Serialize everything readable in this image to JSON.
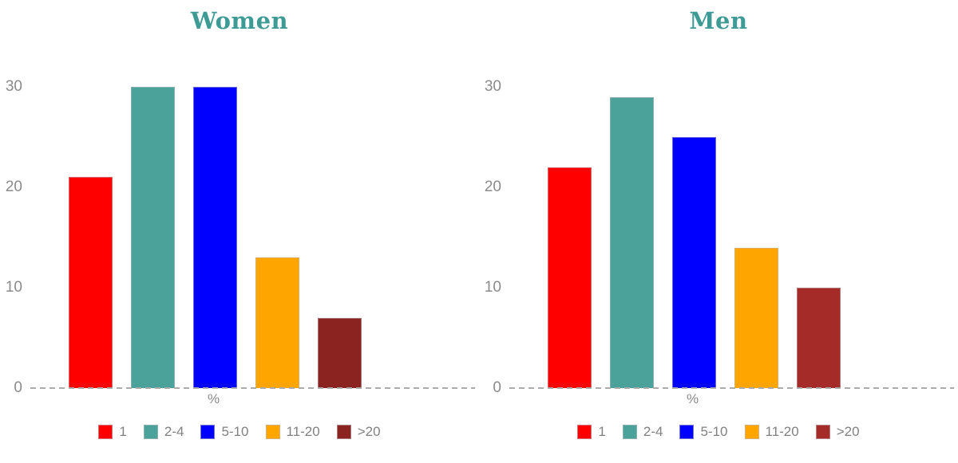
{
  "page": {
    "background": "#ffffff",
    "axis_text_color": "#8a8a8a",
    "legend_text_color": "#808080"
  },
  "chart_data": [
    {
      "type": "bar",
      "title": "Women",
      "title_color": "#3d9a94",
      "xlabel": "%",
      "categories": [
        "1",
        "2-4",
        "5-10",
        "11-20",
        ">20"
      ],
      "values": [
        21,
        30,
        30,
        13,
        7
      ],
      "colors": [
        "#fe0000",
        "#4aa29b",
        "#0000fe",
        "#ffa500",
        "#8b2320"
      ],
      "ylim": [
        0,
        30
      ],
      "yticks": [
        0,
        10,
        20,
        30
      ],
      "grid": false,
      "baseline_style": "dashed",
      "legend_position": "bottom"
    },
    {
      "type": "bar",
      "title": "Men",
      "title_color": "#3d9a94",
      "xlabel": "%",
      "categories": [
        "1",
        "2-4",
        "5-10",
        "11-20",
        ">20"
      ],
      "values": [
        22,
        29,
        25,
        14,
        10
      ],
      "colors": [
        "#fe0000",
        "#4aa29b",
        "#0000fe",
        "#ffa500",
        "#a52b28"
      ],
      "ylim": [
        0,
        30
      ],
      "yticks": [
        0,
        10,
        20,
        30
      ],
      "grid": false,
      "baseline_style": "dashed",
      "legend_position": "bottom"
    }
  ]
}
